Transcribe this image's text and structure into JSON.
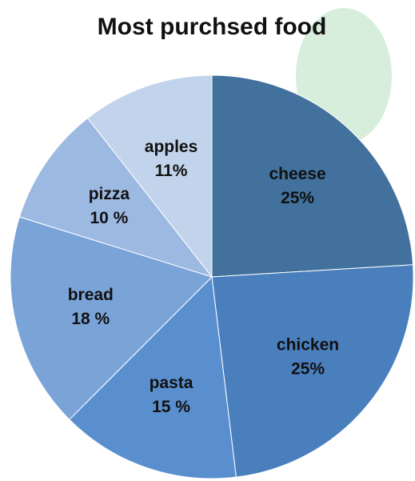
{
  "chart_data": {
    "type": "pie",
    "title": "Most purchsed food",
    "categories": [
      "cheese",
      "chicken",
      "pasta",
      "bread",
      "pizza",
      "apples"
    ],
    "values": [
      25,
      25,
      15,
      18,
      10,
      11
    ],
    "value_labels": [
      "25%",
      "25%",
      "15 %",
      "18 %",
      "10 %",
      "11%"
    ],
    "colors": [
      "#41719c",
      "#4a7fbd",
      "#5a8fcf",
      "#7aa3d8",
      "#9cb9e2",
      "#c2d3ec"
    ]
  }
}
